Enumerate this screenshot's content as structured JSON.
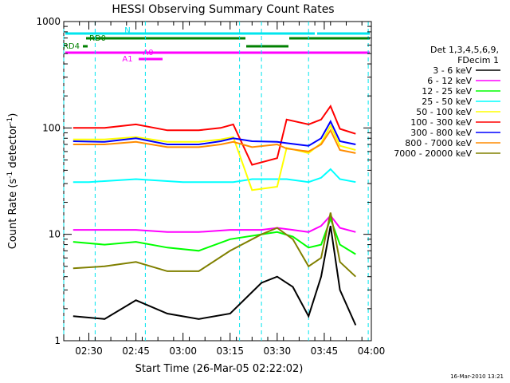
{
  "chart_data": {
    "type": "line",
    "title": "HESSI Observing Summary Count Rates",
    "xlabel": "Start Time (26-Mar-05 02:22:02)",
    "ylabel_main": "Count Rate (s",
    "ylabel_sup1": "-1",
    "ylabel_mid": " detector",
    "ylabel_sup2": "-1",
    "ylabel_end": ")",
    "y_scale": "log",
    "ylim": [
      1,
      1000
    ],
    "xlim": [
      "02:22",
      "04:00"
    ],
    "y_ticks": [
      "1",
      "10",
      "100",
      "1000"
    ],
    "x_ticks": [
      "02:30",
      "02:45",
      "03:00",
      "03:15",
      "03:30",
      "03:45",
      "04:00"
    ],
    "legend_header": [
      "Det 1,3,4,5,6,9,",
      "FDecim 1"
    ],
    "legend_position": "right",
    "footer": "16-Mar-2010 13:21",
    "flags": [
      {
        "label": "N",
        "color": "#00e5ee"
      },
      {
        "label": "RD0",
        "color": "#008000"
      },
      {
        "label": "RD4",
        "color": "#008000"
      },
      {
        "label": "A0",
        "color": "#ff00ff"
      },
      {
        "label": "A1",
        "color": "#ff00ff"
      }
    ],
    "time_markers": [
      "02:22",
      "02:32",
      "02:48",
      "03:18",
      "03:25",
      "03:40",
      "03:59"
    ],
    "series": [
      {
        "name": "3 - 6 keV",
        "color": "#000000",
        "x": [
          "02:25",
          "02:35",
          "02:45",
          "02:55",
          "03:05",
          "03:15",
          "03:25",
          "03:30",
          "03:35",
          "03:40",
          "03:44",
          "03:47",
          "03:50",
          "03:55"
        ],
        "y": [
          1.7,
          1.6,
          2.4,
          1.8,
          1.6,
          1.8,
          3.5,
          4,
          3.2,
          1.7,
          4,
          12,
          3,
          1.4
        ]
      },
      {
        "name": "6 - 12 keV",
        "color": "#ff00ff",
        "x": [
          "02:25",
          "02:35",
          "02:45",
          "02:55",
          "03:05",
          "03:15",
          "03:25",
          "03:30",
          "03:35",
          "03:40",
          "03:44",
          "03:47",
          "03:50",
          "03:55"
        ],
        "y": [
          11,
          11,
          11,
          10.5,
          10.5,
          11,
          11,
          11.5,
          11,
          10.5,
          12,
          15,
          11.5,
          10.5
        ]
      },
      {
        "name": "12 - 25 keV",
        "color": "#00ff00",
        "x": [
          "02:25",
          "02:35",
          "02:45",
          "02:55",
          "03:05",
          "03:15",
          "03:25",
          "03:30",
          "03:35",
          "03:40",
          "03:44",
          "03:47",
          "03:50",
          "03:55"
        ],
        "y": [
          8.5,
          8,
          8.5,
          7.5,
          7,
          9,
          10,
          10.5,
          9.5,
          7.5,
          8,
          14,
          8,
          6.5
        ]
      },
      {
        "name": "25 - 50 keV",
        "color": "#00ffff",
        "x": [
          "02:25",
          "02:30",
          "02:45",
          "03:00",
          "03:10",
          "03:16",
          "03:22",
          "03:30",
          "03:33",
          "03:40",
          "03:44",
          "03:47",
          "03:50",
          "03:55"
        ],
        "y": [
          31,
          31,
          33,
          31,
          31,
          31,
          33,
          33,
          33,
          31,
          34,
          41,
          33,
          31
        ]
      },
      {
        "name": "50 - 100 keV",
        "color": "#ffff00",
        "x": [
          "02:25",
          "02:35",
          "02:45",
          "02:55",
          "03:05",
          "03:12",
          "03:16",
          "03:22",
          "03:30",
          "03:33",
          "03:40",
          "03:44",
          "03:47",
          "03:50",
          "03:55"
        ],
        "y": [
          78,
          78,
          82,
          74,
          74,
          78,
          82,
          26,
          28,
          65,
          58,
          72,
          105,
          68,
          62
        ]
      },
      {
        "name": "100 - 300 keV",
        "color": "#ff0000",
        "x": [
          "02:25",
          "02:35",
          "02:45",
          "02:55",
          "03:05",
          "03:12",
          "03:16",
          "03:22",
          "03:30",
          "03:33",
          "03:40",
          "03:44",
          "03:47",
          "03:50",
          "03:55"
        ],
        "y": [
          100,
          100,
          108,
          95,
          95,
          100,
          108,
          45,
          52,
          120,
          108,
          120,
          160,
          98,
          88
        ]
      },
      {
        "name": "300 - 800 keV",
        "color": "#0000ff",
        "x": [
          "02:25",
          "02:35",
          "02:45",
          "02:55",
          "03:05",
          "03:12",
          "03:16",
          "03:22",
          "03:30",
          "03:33",
          "03:40",
          "03:44",
          "03:47",
          "03:50",
          "03:55"
        ],
        "y": [
          75,
          74,
          80,
          70,
          70,
          75,
          80,
          75,
          74,
          72,
          68,
          80,
          115,
          75,
          70
        ]
      },
      {
        "name": "800 - 7000 keV",
        "color": "#ff8c00",
        "x": [
          "02:25",
          "02:35",
          "02:45",
          "02:55",
          "03:05",
          "03:12",
          "03:16",
          "03:22",
          "03:30",
          "03:33",
          "03:40",
          "03:44",
          "03:47",
          "03:50",
          "03:55"
        ],
        "y": [
          70,
          70,
          74,
          66,
          66,
          70,
          74,
          66,
          70,
          64,
          60,
          70,
          95,
          62,
          58
        ]
      },
      {
        "name": "7000 - 20000 keV",
        "color": "#808000",
        "x": [
          "02:25",
          "02:35",
          "02:45",
          "02:55",
          "03:05",
          "03:15",
          "03:25",
          "03:30",
          "03:35",
          "03:40",
          "03:44",
          "03:47",
          "03:50",
          "03:55"
        ],
        "y": [
          4.8,
          5,
          5.5,
          4.5,
          4.5,
          7,
          10,
          11.5,
          9,
          5,
          6,
          16,
          5.5,
          4
        ]
      }
    ]
  }
}
